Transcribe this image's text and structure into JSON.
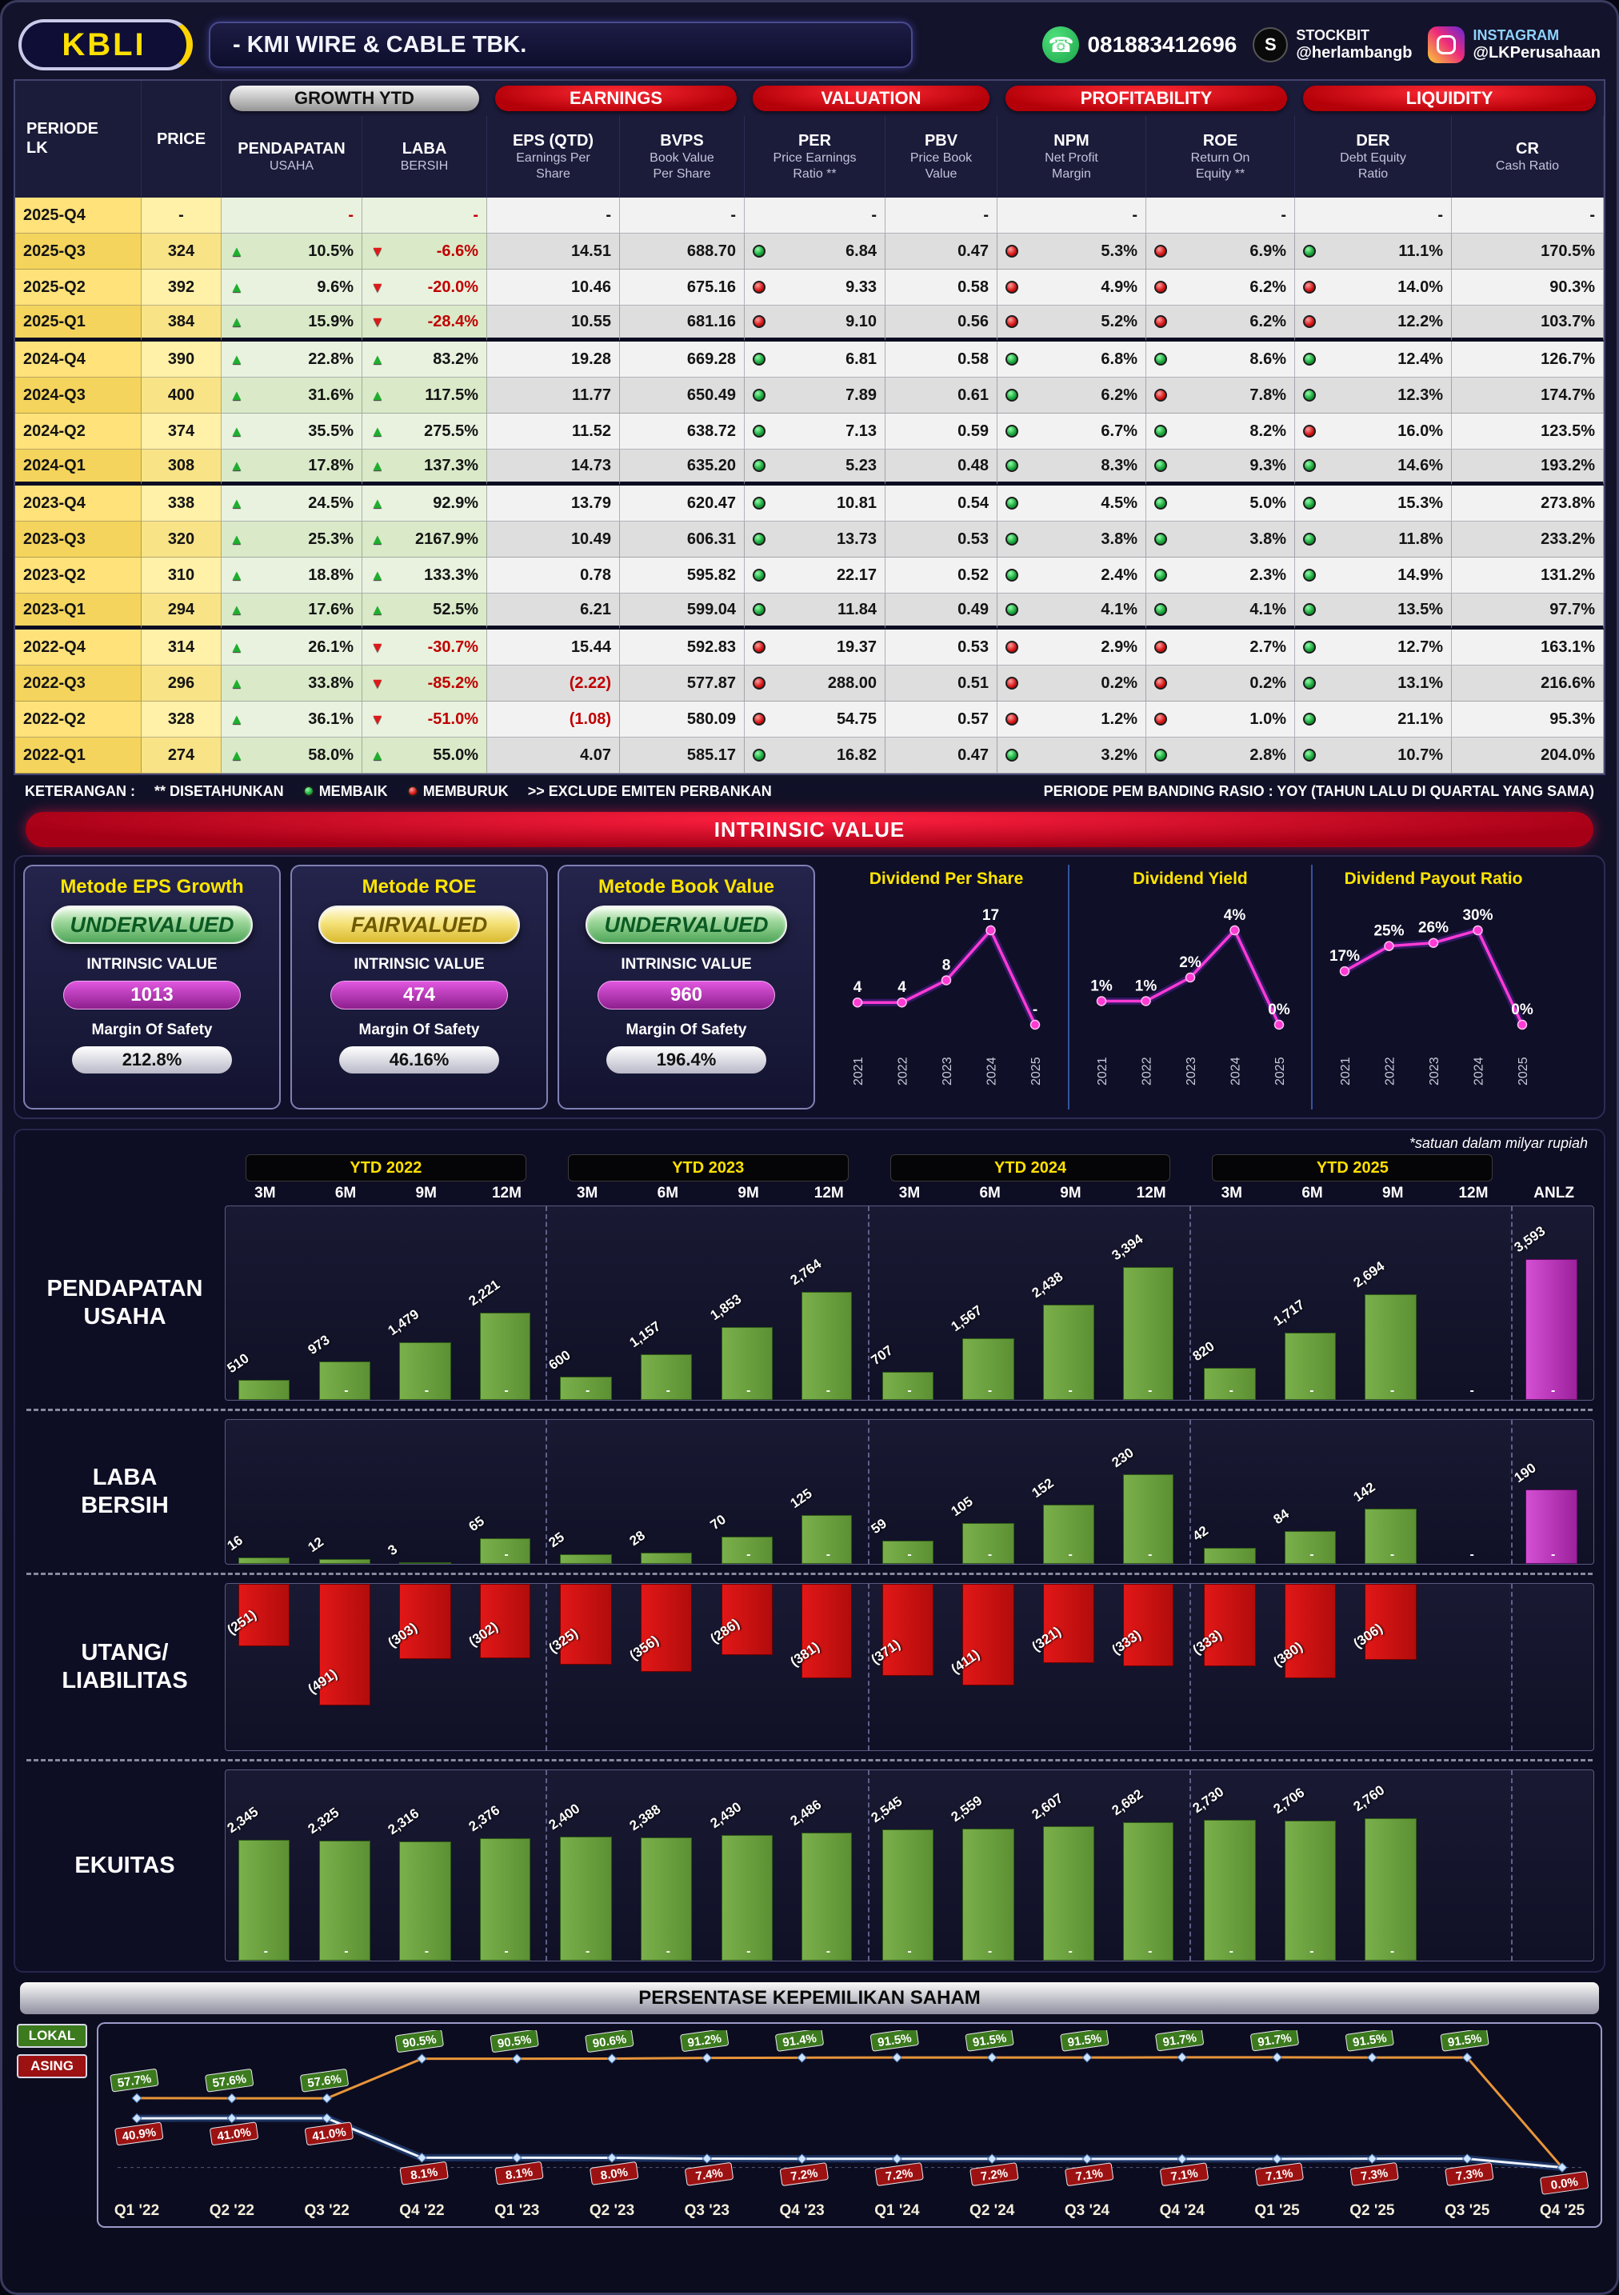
{
  "accent_colors": {
    "yellow": "#ffe000",
    "red_pill": "#b40008",
    "magenta": "#c23bc2",
    "green_bar": "#6da244",
    "red_bar": "#cf1212",
    "dividend_line": "#ff3bd4"
  },
  "header": {
    "ticker": "KBLI",
    "company": "-  KMI WIRE & CABLE TBK.",
    "whatsapp": "081883412696",
    "stockbit_label": "STOCKBIT",
    "stockbit_handle": "@herlambangb",
    "instagram_label": "INSTAGRAM",
    "instagram_handle": "@LKPerusahaan"
  },
  "table": {
    "group_headers": [
      "GROWTH YTD",
      "EARNINGS",
      "VALUATION",
      "PROFITABILITY",
      "LIQUIDITY"
    ],
    "columns": [
      {
        "main": "PERIODE",
        "sub": [
          "LK"
        ]
      },
      {
        "main": "PRICE",
        "sub": []
      },
      {
        "main": "PENDAPATAN",
        "sub": [
          "USAHA"
        ]
      },
      {
        "main": "LABA",
        "sub": [
          "BERSIH"
        ]
      },
      {
        "main": "EPS (QTD)",
        "sub": [
          "Earnings Per",
          "Share"
        ]
      },
      {
        "main": "BVPS",
        "sub": [
          "Book Value",
          "Per Share"
        ]
      },
      {
        "main": "PER",
        "sub": [
          "Price Earnings",
          "Ratio **"
        ]
      },
      {
        "main": "PBV",
        "sub": [
          "Price Book",
          "Value"
        ]
      },
      {
        "main": "NPM",
        "sub": [
          "Net Profit",
          "Margin"
        ]
      },
      {
        "main": "ROE",
        "sub": [
          "Return On",
          "Equity **"
        ]
      },
      {
        "main": "DER",
        "sub": [
          "Debt Equity",
          "Ratio"
        ]
      },
      {
        "main": "CR",
        "sub": [
          "Cash Ratio"
        ]
      }
    ],
    "rows": [
      {
        "periode": "2025-Q4",
        "price": "-",
        "pend": null,
        "pend_v": "-",
        "laba": null,
        "laba_v": "-",
        "eps": "-",
        "eps_neg": false,
        "bvps": "-",
        "per": "-",
        "pbv": "-",
        "npm": "-",
        "roe": "-",
        "der": "-",
        "cr": "-",
        "dots": null,
        "sep": false
      },
      {
        "periode": "2025-Q3",
        "price": "324",
        "pend": "up",
        "pend_v": "10.5%",
        "laba": "down",
        "laba_v": "-6.6%",
        "eps": "14.51",
        "eps_neg": false,
        "bvps": "688.70",
        "per": "6.84",
        "pbv": "0.47",
        "npm": "5.3%",
        "roe": "6.9%",
        "der": "11.1%",
        "cr": "170.5%",
        "dots": [
          "g",
          "r",
          "r",
          "g"
        ],
        "sep": false
      },
      {
        "periode": "2025-Q2",
        "price": "392",
        "pend": "up",
        "pend_v": "9.6%",
        "laba": "down",
        "laba_v": "-20.0%",
        "eps": "10.46",
        "eps_neg": false,
        "bvps": "675.16",
        "per": "9.33",
        "pbv": "0.58",
        "npm": "4.9%",
        "roe": "6.2%",
        "der": "14.0%",
        "cr": "90.3%",
        "dots": [
          "r",
          "r",
          "r",
          "r"
        ],
        "sep": false
      },
      {
        "periode": "2025-Q1",
        "price": "384",
        "pend": "up",
        "pend_v": "15.9%",
        "laba": "down",
        "laba_v": "-28.4%",
        "eps": "10.55",
        "eps_neg": false,
        "bvps": "681.16",
        "per": "9.10",
        "pbv": "0.56",
        "npm": "5.2%",
        "roe": "6.2%",
        "der": "12.2%",
        "cr": "103.7%",
        "dots": [
          "r",
          "r",
          "r",
          "r"
        ],
        "sep": true
      },
      {
        "periode": "2024-Q4",
        "price": "390",
        "pend": "up",
        "pend_v": "22.8%",
        "laba": "up",
        "laba_v": "83.2%",
        "eps": "19.28",
        "eps_neg": false,
        "bvps": "669.28",
        "per": "6.81",
        "pbv": "0.58",
        "npm": "6.8%",
        "roe": "8.6%",
        "der": "12.4%",
        "cr": "126.7%",
        "dots": [
          "g",
          "g",
          "g",
          "g"
        ],
        "sep": false
      },
      {
        "periode": "2024-Q3",
        "price": "400",
        "pend": "up",
        "pend_v": "31.6%",
        "laba": "up",
        "laba_v": "117.5%",
        "eps": "11.77",
        "eps_neg": false,
        "bvps": "650.49",
        "per": "7.89",
        "pbv": "0.61",
        "npm": "6.2%",
        "roe": "7.8%",
        "der": "12.3%",
        "cr": "174.7%",
        "dots": [
          "g",
          "g",
          "r",
          "g"
        ],
        "sep": false
      },
      {
        "periode": "2024-Q2",
        "price": "374",
        "pend": "up",
        "pend_v": "35.5%",
        "laba": "up",
        "laba_v": "275.5%",
        "eps": "11.52",
        "eps_neg": false,
        "bvps": "638.72",
        "per": "7.13",
        "pbv": "0.59",
        "npm": "6.7%",
        "roe": "8.2%",
        "der": "16.0%",
        "cr": "123.5%",
        "dots": [
          "g",
          "g",
          "g",
          "r"
        ],
        "sep": false
      },
      {
        "periode": "2024-Q1",
        "price": "308",
        "pend": "up",
        "pend_v": "17.8%",
        "laba": "up",
        "laba_v": "137.3%",
        "eps": "14.73",
        "eps_neg": false,
        "bvps": "635.20",
        "per": "5.23",
        "pbv": "0.48",
        "npm": "8.3%",
        "roe": "9.3%",
        "der": "14.6%",
        "cr": "193.2%",
        "dots": [
          "g",
          "g",
          "g",
          "g"
        ],
        "sep": true
      },
      {
        "periode": "2023-Q4",
        "price": "338",
        "pend": "up",
        "pend_v": "24.5%",
        "laba": "up",
        "laba_v": "92.9%",
        "eps": "13.79",
        "eps_neg": false,
        "bvps": "620.47",
        "per": "10.81",
        "pbv": "0.54",
        "npm": "4.5%",
        "roe": "5.0%",
        "der": "15.3%",
        "cr": "273.8%",
        "dots": [
          "g",
          "g",
          "g",
          "g"
        ],
        "sep": false
      },
      {
        "periode": "2023-Q3",
        "price": "320",
        "pend": "up",
        "pend_v": "25.3%",
        "laba": "up",
        "laba_v": "2167.9%",
        "eps": "10.49",
        "eps_neg": false,
        "bvps": "606.31",
        "per": "13.73",
        "pbv": "0.53",
        "npm": "3.8%",
        "roe": "3.8%",
        "der": "11.8%",
        "cr": "233.2%",
        "dots": [
          "g",
          "g",
          "g",
          "g"
        ],
        "sep": false
      },
      {
        "periode": "2023-Q2",
        "price": "310",
        "pend": "up",
        "pend_v": "18.8%",
        "laba": "up",
        "laba_v": "133.3%",
        "eps": "0.78",
        "eps_neg": false,
        "bvps": "595.82",
        "per": "22.17",
        "pbv": "0.52",
        "npm": "2.4%",
        "roe": "2.3%",
        "der": "14.9%",
        "cr": "131.2%",
        "dots": [
          "g",
          "g",
          "g",
          "g"
        ],
        "sep": false
      },
      {
        "periode": "2023-Q1",
        "price": "294",
        "pend": "up",
        "pend_v": "17.6%",
        "laba": "up",
        "laba_v": "52.5%",
        "eps": "6.21",
        "eps_neg": false,
        "bvps": "599.04",
        "per": "11.84",
        "pbv": "0.49",
        "npm": "4.1%",
        "roe": "4.1%",
        "der": "13.5%",
        "cr": "97.7%",
        "dots": [
          "g",
          "g",
          "g",
          "g"
        ],
        "sep": true
      },
      {
        "periode": "2022-Q4",
        "price": "314",
        "pend": "up",
        "pend_v": "26.1%",
        "laba": "down",
        "laba_v": "-30.7%",
        "eps": "15.44",
        "eps_neg": false,
        "bvps": "592.83",
        "per": "19.37",
        "pbv": "0.53",
        "npm": "2.9%",
        "roe": "2.7%",
        "der": "12.7%",
        "cr": "163.1%",
        "dots": [
          "r",
          "r",
          "r",
          "g"
        ],
        "sep": false
      },
      {
        "periode": "2022-Q3",
        "price": "296",
        "pend": "up",
        "pend_v": "33.8%",
        "laba": "down",
        "laba_v": "-85.2%",
        "eps": "(2.22)",
        "eps_neg": true,
        "bvps": "577.87",
        "per": "288.00",
        "pbv": "0.51",
        "npm": "0.2%",
        "roe": "0.2%",
        "der": "13.1%",
        "cr": "216.6%",
        "dots": [
          "r",
          "r",
          "r",
          "g"
        ],
        "sep": false
      },
      {
        "periode": "2022-Q2",
        "price": "328",
        "pend": "up",
        "pend_v": "36.1%",
        "laba": "down",
        "laba_v": "-51.0%",
        "eps": "(1.08)",
        "eps_neg": true,
        "bvps": "580.09",
        "per": "54.75",
        "pbv": "0.57",
        "npm": "1.2%",
        "roe": "1.0%",
        "der": "21.1%",
        "cr": "95.3%",
        "dots": [
          "r",
          "r",
          "r",
          "g"
        ],
        "sep": false
      },
      {
        "periode": "2022-Q1",
        "price": "274",
        "pend": "up",
        "pend_v": "58.0%",
        "laba": "up",
        "laba_v": "55.0%",
        "eps": "4.07",
        "eps_neg": false,
        "bvps": "585.17",
        "per": "16.82",
        "pbv": "0.47",
        "npm": "3.2%",
        "roe": "2.8%",
        "der": "10.7%",
        "cr": "204.0%",
        "dots": [
          "g",
          "g",
          "g",
          "g"
        ],
        "sep": false
      }
    ],
    "legend": {
      "prefix": "KETERANGAN :",
      "annualized": "** DISETAHUNKAN",
      "improve": "MEMBAIK",
      "worsen": "MEMBURUK",
      "exclude": ">> EXCLUDE EMITEN PERBANKAN",
      "period_note": "PERIODE PEM BANDING RASIO : YOY (TAHUN LALU DI QUARTAL YANG SAMA)"
    }
  },
  "intrinsic": {
    "banner": "INTRINSIC VALUE",
    "methods": [
      {
        "title": "Metode EPS Growth",
        "verdict": "UNDERVALUED",
        "verdict_type": "green",
        "iv_label": "INTRINSIC VALUE",
        "iv_value": "1013",
        "mos_label": "Margin Of Safety",
        "mos_value": "212.8%"
      },
      {
        "title": "Metode ROE",
        "verdict": "FAIRVALUED",
        "verdict_type": "yellow",
        "iv_label": "INTRINSIC VALUE",
        "iv_value": "474",
        "mos_label": "Margin Of Safety",
        "mos_value": "46.16%"
      },
      {
        "title": "Metode Book Value",
        "verdict": "UNDERVALUED",
        "verdict_type": "green",
        "iv_label": "INTRINSIC VALUE",
        "iv_value": "960",
        "mos_label": "Margin Of Safety",
        "mos_value": "196.4%"
      }
    ]
  },
  "bars_section": {
    "note": "*satuan dalam milyar rupiah",
    "groups": [
      {
        "label": "YTD 2022",
        "cols": [
          "3M",
          "6M",
          "9M",
          "12M"
        ]
      },
      {
        "label": "YTD 2023",
        "cols": [
          "3M",
          "6M",
          "9M",
          "12M"
        ]
      },
      {
        "label": "YTD 2024",
        "cols": [
          "3M",
          "6M",
          "9M",
          "12M"
        ]
      },
      {
        "label": "YTD 2025",
        "cols": [
          "3M",
          "6M",
          "9M",
          "12M"
        ]
      }
    ],
    "anlz_label": "ANLZ",
    "row_titles": [
      [
        "PENDAPATAN",
        "USAHA"
      ],
      [
        "LABA",
        "BERSIH"
      ],
      [
        "UTANG/",
        "LIABILITAS"
      ],
      [
        "EKUITAS"
      ]
    ]
  },
  "ownership": {
    "banner": "PERSENTASE KEPEMILIKAN SAHAM",
    "legend": [
      {
        "label": "LOKAL",
        "color": "#3c7a1e"
      },
      {
        "label": "ASING",
        "color": "#9c1212"
      }
    ]
  },
  "chart_data": [
    {
      "id": "dividend_per_share",
      "type": "line",
      "title": "Dividend Per Share",
      "x": [
        "2021",
        "2022",
        "2023",
        "2024",
        "2025"
      ],
      "values": [
        4,
        4,
        8,
        17,
        null
      ],
      "labels": [
        "4",
        "4",
        "8",
        "17",
        "-"
      ],
      "line_color": "#ff3bd4"
    },
    {
      "id": "dividend_yield",
      "type": "line",
      "title": "Dividend Yield",
      "x": [
        "2021",
        "2022",
        "2023",
        "2024",
        "2025"
      ],
      "values": [
        1,
        1,
        2,
        4,
        0
      ],
      "labels": [
        "1%",
        "1%",
        "2%",
        "4%",
        "0%"
      ],
      "line_color": "#ff3bd4"
    },
    {
      "id": "dividend_payout_ratio",
      "type": "line",
      "title": "Dividend Payout Ratio",
      "x": [
        "2021",
        "2022",
        "2023",
        "2024",
        "2025"
      ],
      "values": [
        17,
        25,
        26,
        30,
        0
      ],
      "labels": [
        "17%",
        "25%",
        "26%",
        "30%",
        "0%"
      ],
      "line_color": "#ff3bd4"
    },
    {
      "id": "pendapatan_usaha",
      "type": "bar",
      "title": "PENDAPATAN USAHA",
      "ylabel": "milyar rupiah",
      "values": [
        510,
        973,
        1479,
        2221,
        600,
        1157,
        1853,
        2764,
        707,
        1567,
        2438,
        3394,
        820,
        1717,
        2694,
        null
      ],
      "labels": [
        "510",
        "973",
        "1,479",
        "2,221",
        "600",
        "1,157",
        "1,853",
        "2,764",
        "707",
        "1,567",
        "2,438",
        "3,394",
        "820",
        "1,717",
        "2,694",
        "-"
      ],
      "anlz": 3593,
      "anlz_label": "3,593",
      "color": "green"
    },
    {
      "id": "laba_bersih",
      "type": "bar",
      "title": "LABA BERSIH",
      "ylabel": "milyar rupiah",
      "values": [
        16,
        12,
        3,
        65,
        25,
        28,
        70,
        125,
        59,
        105,
        152,
        230,
        42,
        84,
        142,
        null
      ],
      "labels": [
        "16",
        "12",
        "3",
        "65",
        "25",
        "28",
        "70",
        "125",
        "59",
        "105",
        "152",
        "230",
        "42",
        "84",
        "142",
        "-"
      ],
      "anlz": 190,
      "anlz_label": "190",
      "color": "green"
    },
    {
      "id": "utang_liabilitas",
      "type": "bar",
      "title": "UTANG/LIABILITAS",
      "ylabel": "milyar rupiah",
      "values": [
        -251,
        -491,
        -303,
        -302,
        -325,
        -356,
        -286,
        -381,
        -371,
        -411,
        -321,
        -333,
        -333,
        -380,
        -306,
        null
      ],
      "labels": [
        "(251)",
        "(491)",
        "(303)",
        "(302)",
        "(325)",
        "(356)",
        "(286)",
        "(381)",
        "(371)",
        "(411)",
        "(321)",
        "(333)",
        "(333)",
        "(380)",
        "(306)",
        ""
      ],
      "anlz": null,
      "anlz_label": "",
      "color": "red"
    },
    {
      "id": "ekuitas",
      "type": "bar",
      "title": "EKUITAS",
      "ylabel": "milyar rupiah",
      "values": [
        2345,
        2325,
        2316,
        2376,
        2400,
        2388,
        2430,
        2486,
        2545,
        2559,
        2607,
        2682,
        2730,
        2706,
        2760,
        null
      ],
      "labels": [
        "2,345",
        "2,325",
        "2,316",
        "2,376",
        "2,400",
        "2,388",
        "2,430",
        "2,486",
        "2,545",
        "2,559",
        "2,607",
        "2,682",
        "2,730",
        "2,706",
        "2,760",
        ""
      ],
      "anlz": null,
      "anlz_label": "",
      "color": "green"
    },
    {
      "id": "kepemilikan_saham",
      "type": "line",
      "title": "PERSENTASE KEPEMILIKAN SAHAM",
      "ylim": [
        0,
        100
      ],
      "x": [
        "Q1 '22",
        "Q2 '22",
        "Q3 '22",
        "Q4 '22",
        "Q1 '23",
        "Q2 '23",
        "Q3 '23",
        "Q4 '23",
        "Q1 '24",
        "Q2 '24",
        "Q3 '24",
        "Q4 '24",
        "Q1 '25",
        "Q2 '25",
        "Q3 '25",
        "Q4 '25"
      ],
      "series": [
        {
          "name": "LOKAL",
          "box_color": "#3c7a1e",
          "line_color": "#e8953a",
          "values": [
            57.7,
            57.6,
            57.6,
            90.5,
            90.5,
            90.6,
            91.2,
            91.4,
            91.5,
            91.5,
            91.5,
            91.7,
            91.7,
            91.5,
            91.5,
            0
          ],
          "labels": [
            "57.7%",
            "57.6%",
            "57.6%",
            "90.5%",
            "90.5%",
            "90.6%",
            "91.2%",
            "91.4%",
            "91.5%",
            "91.5%",
            "91.5%",
            "91.7%",
            "91.7%",
            "91.5%",
            "91.5%",
            ""
          ]
        },
        {
          "name": "ASING",
          "box_color": "#9c1212",
          "line_color": "#eef4ff",
          "values": [
            40.9,
            41.0,
            41.0,
            8.1,
            8.1,
            8.0,
            7.4,
            7.2,
            7.2,
            7.2,
            7.1,
            7.1,
            7.1,
            7.3,
            7.3,
            0
          ],
          "labels": [
            "40.9%",
            "41.0%",
            "41.0%",
            "8.1%",
            "8.1%",
            "8.0%",
            "7.4%",
            "7.2%",
            "7.2%",
            "7.2%",
            "7.1%",
            "7.1%",
            "7.1%",
            "7.3%",
            "7.3%",
            "0.0%"
          ]
        }
      ]
    }
  ]
}
